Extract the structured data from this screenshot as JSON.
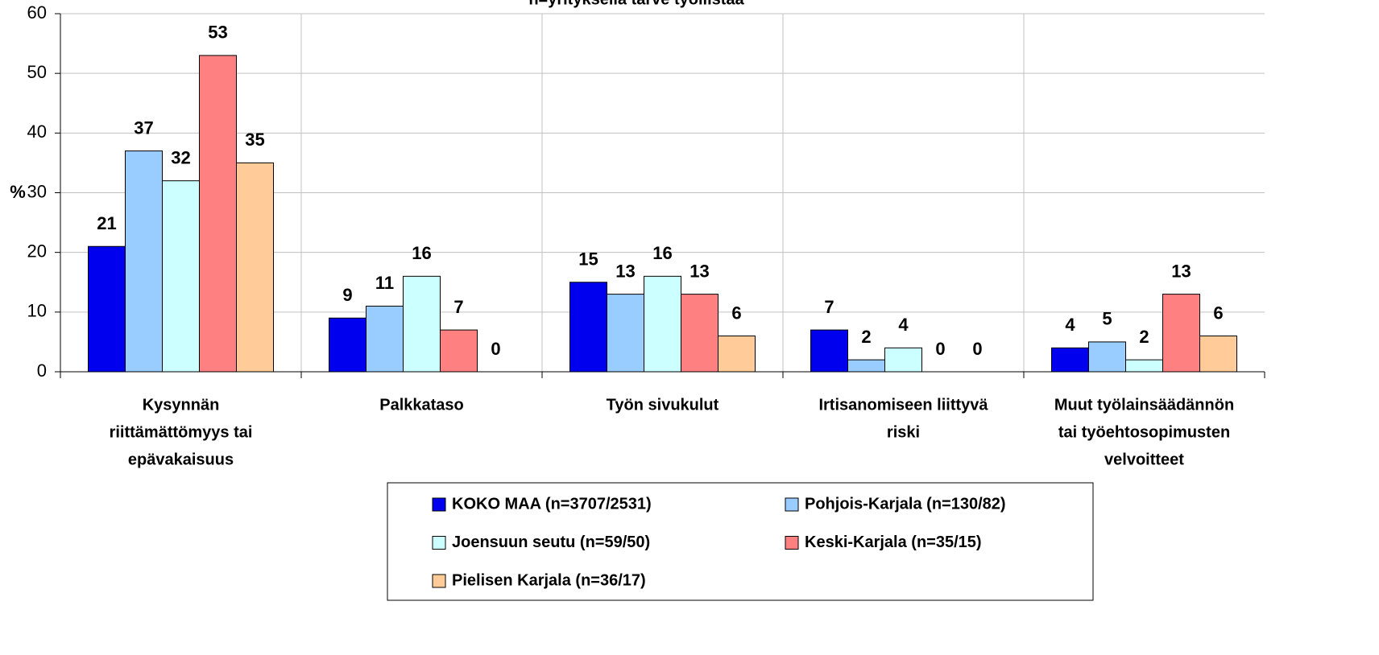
{
  "chart_data": {
    "type": "bar",
    "title": "n=yrityksellä tarve työllistää",
    "y_label": "%",
    "categories": [
      [
        "Kysynnän",
        "riittämättömyys tai",
        "epävakaisuus"
      ],
      [
        "Palkkataso"
      ],
      [
        "Työn sivukulut"
      ],
      [
        "Irtisanomiseen liittyvä",
        "riski"
      ],
      [
        "Muut työlainsäädännön",
        "tai työehtosopimusten",
        "velvoitteet"
      ]
    ],
    "series": [
      {
        "name": "KOKO MAA (n=3707/2531)",
        "color": "#0000ee",
        "values": [
          21,
          9,
          15,
          7,
          4
        ]
      },
      {
        "name": "Pohjois-Karjala (n=130/82)",
        "color": "#99ccff",
        "values": [
          37,
          11,
          13,
          2,
          5
        ]
      },
      {
        "name": "Joensuun seutu (n=59/50)",
        "color": "#ccffff",
        "values": [
          32,
          16,
          16,
          4,
          2
        ]
      },
      {
        "name": "Keski-Karjala (n=35/15)",
        "color": "#ff8080",
        "values": [
          53,
          7,
          13,
          0,
          13
        ]
      },
      {
        "name": "Pielisen Karjala (n=36/17)",
        "color": "#ffcc99",
        "values": [
          35,
          0,
          6,
          0,
          6
        ]
      }
    ],
    "ylim": [
      0,
      60
    ],
    "yticks": [
      0,
      10,
      20,
      30,
      40,
      50,
      60
    ],
    "grid": true,
    "legend": "bottom"
  }
}
